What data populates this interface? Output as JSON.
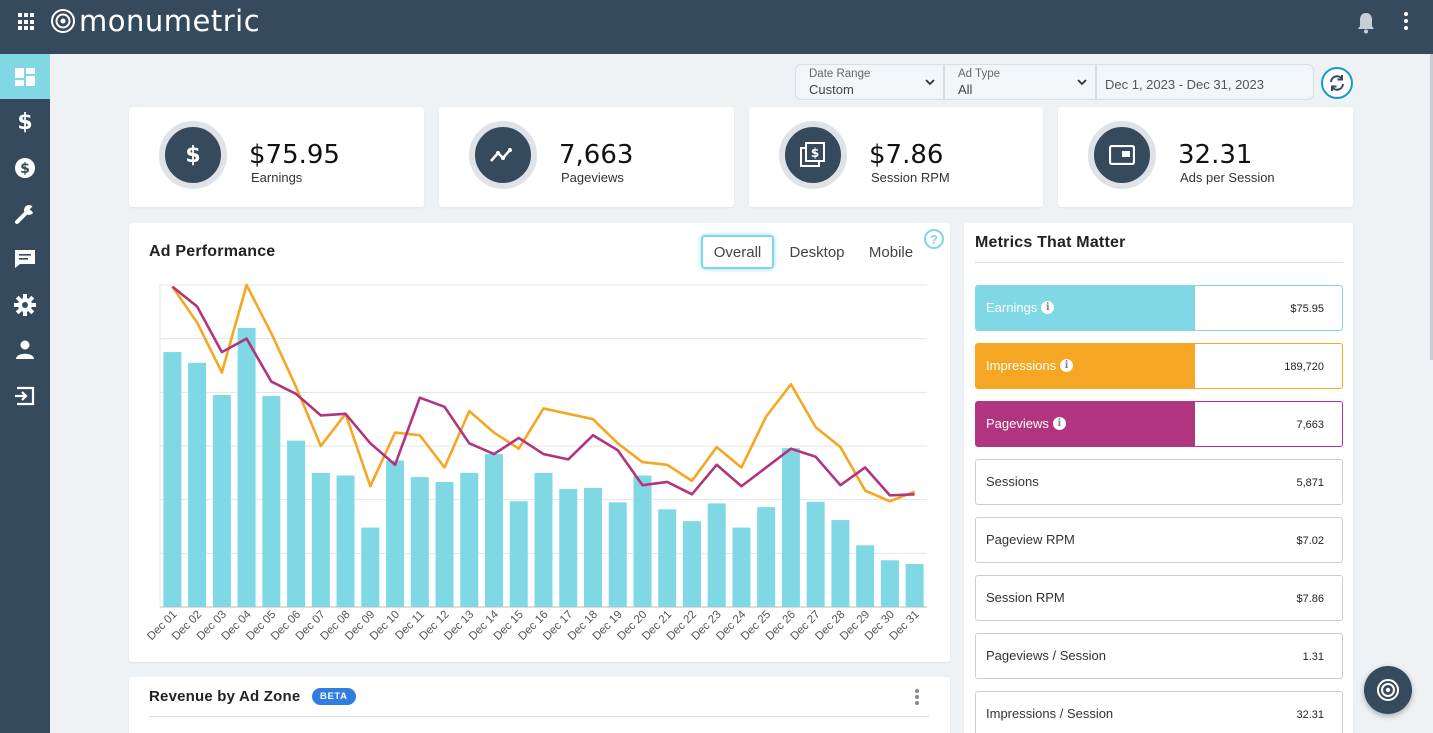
{
  "app": {
    "logo_text": "monumetric",
    "brand_color": "#364a5e",
    "accent": "#7fd8e3"
  },
  "topbar": {
    "icons": [
      "apps-grid-icon",
      "bell-icon",
      "more-vert-icon"
    ]
  },
  "sidebar": {
    "items": [
      {
        "icon": "dashboard-icon",
        "active": true
      },
      {
        "icon": "dollar-icon"
      },
      {
        "icon": "coin-icon"
      },
      {
        "icon": "wrench-icon"
      },
      {
        "icon": "message-icon"
      },
      {
        "icon": "gear-icon"
      },
      {
        "icon": "user-icon"
      },
      {
        "icon": "logout-icon"
      }
    ]
  },
  "filters": {
    "date_range": {
      "label": "Date Range",
      "value": "Custom"
    },
    "ad_type": {
      "label": "Ad Type",
      "value": "All"
    },
    "range_text": "Dec 1, 2023 - Dec 31, 2023"
  },
  "kpis": [
    {
      "value": "$75.95",
      "label": "Earnings",
      "icon": "dollar-icon"
    },
    {
      "value": "7,663",
      "label": "Pageviews",
      "icon": "trend-icon"
    },
    {
      "value": "$7.86",
      "label": "Session RPM",
      "icon": "stacked-dollar-icon"
    },
    {
      "value": "32.31",
      "label": "Ads per Session",
      "icon": "ad-frame-icon"
    }
  ],
  "ad_performance": {
    "title": "Ad Performance",
    "tabs": [
      "Overall",
      "Desktop",
      "Mobile"
    ],
    "active_tab": "Overall",
    "help": "?"
  },
  "chart_data": {
    "type": "bar",
    "categories": [
      "Dec 01",
      "Dec 02",
      "Dec 03",
      "Dec 04",
      "Dec 05",
      "Dec 06",
      "Dec 07",
      "Dec 08",
      "Dec 09",
      "Dec 10",
      "Dec 11",
      "Dec 12",
      "Dec 13",
      "Dec 14",
      "Dec 15",
      "Dec 16",
      "Dec 17",
      "Dec 18",
      "Dec 19",
      "Dec 20",
      "Dec 21",
      "Dec 22",
      "Dec 23",
      "Dec 24",
      "Dec 25",
      "Dec 26",
      "Dec 27",
      "Dec 28",
      "Dec 29",
      "Dec 30",
      "Dec 31"
    ],
    "series": [
      {
        "values": [
          4.75,
          4.55,
          3.95,
          5.2,
          3.93,
          3.1,
          2.5,
          2.45,
          1.48,
          2.73,
          2.42,
          2.33,
          2.5,
          2.85,
          1.97,
          2.5,
          2.2,
          2.22,
          1.95,
          2.45,
          1.82,
          1.6,
          1.93,
          1.48,
          1.86,
          2.96,
          1.96,
          1.62,
          1.15,
          0.87,
          0.8
        ],
        "color": "#7fd8e3"
      },
      {
        "values": [
          5.97,
          5.3,
          4.37,
          6.0,
          5.1,
          4.1,
          3.0,
          3.6,
          2.25,
          3.25,
          3.2,
          2.6,
          3.65,
          3.25,
          2.95,
          3.7,
          3.6,
          3.5,
          3.05,
          2.7,
          2.65,
          2.35,
          2.98,
          2.6,
          3.55,
          4.15,
          3.35,
          2.98,
          2.17,
          1.97,
          2.15
        ],
        "color": "#f5a623"
      },
      {
        "values": [
          5.97,
          5.6,
          4.75,
          5.0,
          4.2,
          3.97,
          3.57,
          3.6,
          3.05,
          2.65,
          3.9,
          3.73,
          3.05,
          2.85,
          3.15,
          2.85,
          2.75,
          3.2,
          2.92,
          2.27,
          2.33,
          2.1,
          2.65,
          2.25,
          2.6,
          2.95,
          2.8,
          2.27,
          2.6,
          2.08,
          2.1
        ],
        "color": "#b0357e"
      }
    ],
    "ylim": [
      0,
      6
    ],
    "grid": true
  },
  "metrics": {
    "title": "Metrics That Matter",
    "rows": [
      {
        "label": "Earnings",
        "value": "$75.95",
        "color": "#7fd8e3",
        "info": true
      },
      {
        "label": "Impressions",
        "value": "189,720",
        "color": "#f5a623",
        "info": true
      },
      {
        "label": "Pageviews",
        "value": "7,663",
        "color": "#b0357e",
        "info": true
      },
      {
        "label": "Sessions",
        "value": "5,871"
      },
      {
        "label": "Pageview RPM",
        "value": "$7.02"
      },
      {
        "label": "Session RPM",
        "value": "$7.86"
      },
      {
        "label": "Pageviews / Session",
        "value": "1.31"
      },
      {
        "label": "Impressions / Session",
        "value": "32.31"
      }
    ]
  },
  "revenue_zone": {
    "title": "Revenue by Ad Zone",
    "badge": "BETA"
  }
}
